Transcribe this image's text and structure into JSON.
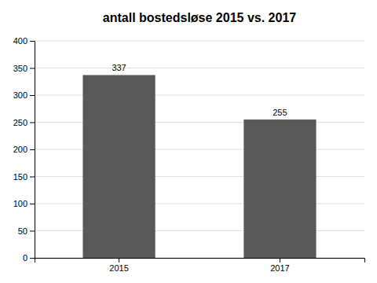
{
  "chart_data": {
    "type": "bar",
    "title": "antall bostedsløse 2015 vs. 2017",
    "categories": [
      "2015",
      "2017"
    ],
    "values": [
      337,
      255
    ],
    "color": "#595959",
    "ylim": [
      0,
      400
    ],
    "yticks": [
      0,
      50,
      100,
      150,
      200,
      250,
      300,
      350,
      400
    ],
    "grid": true,
    "data_labels": true
  }
}
